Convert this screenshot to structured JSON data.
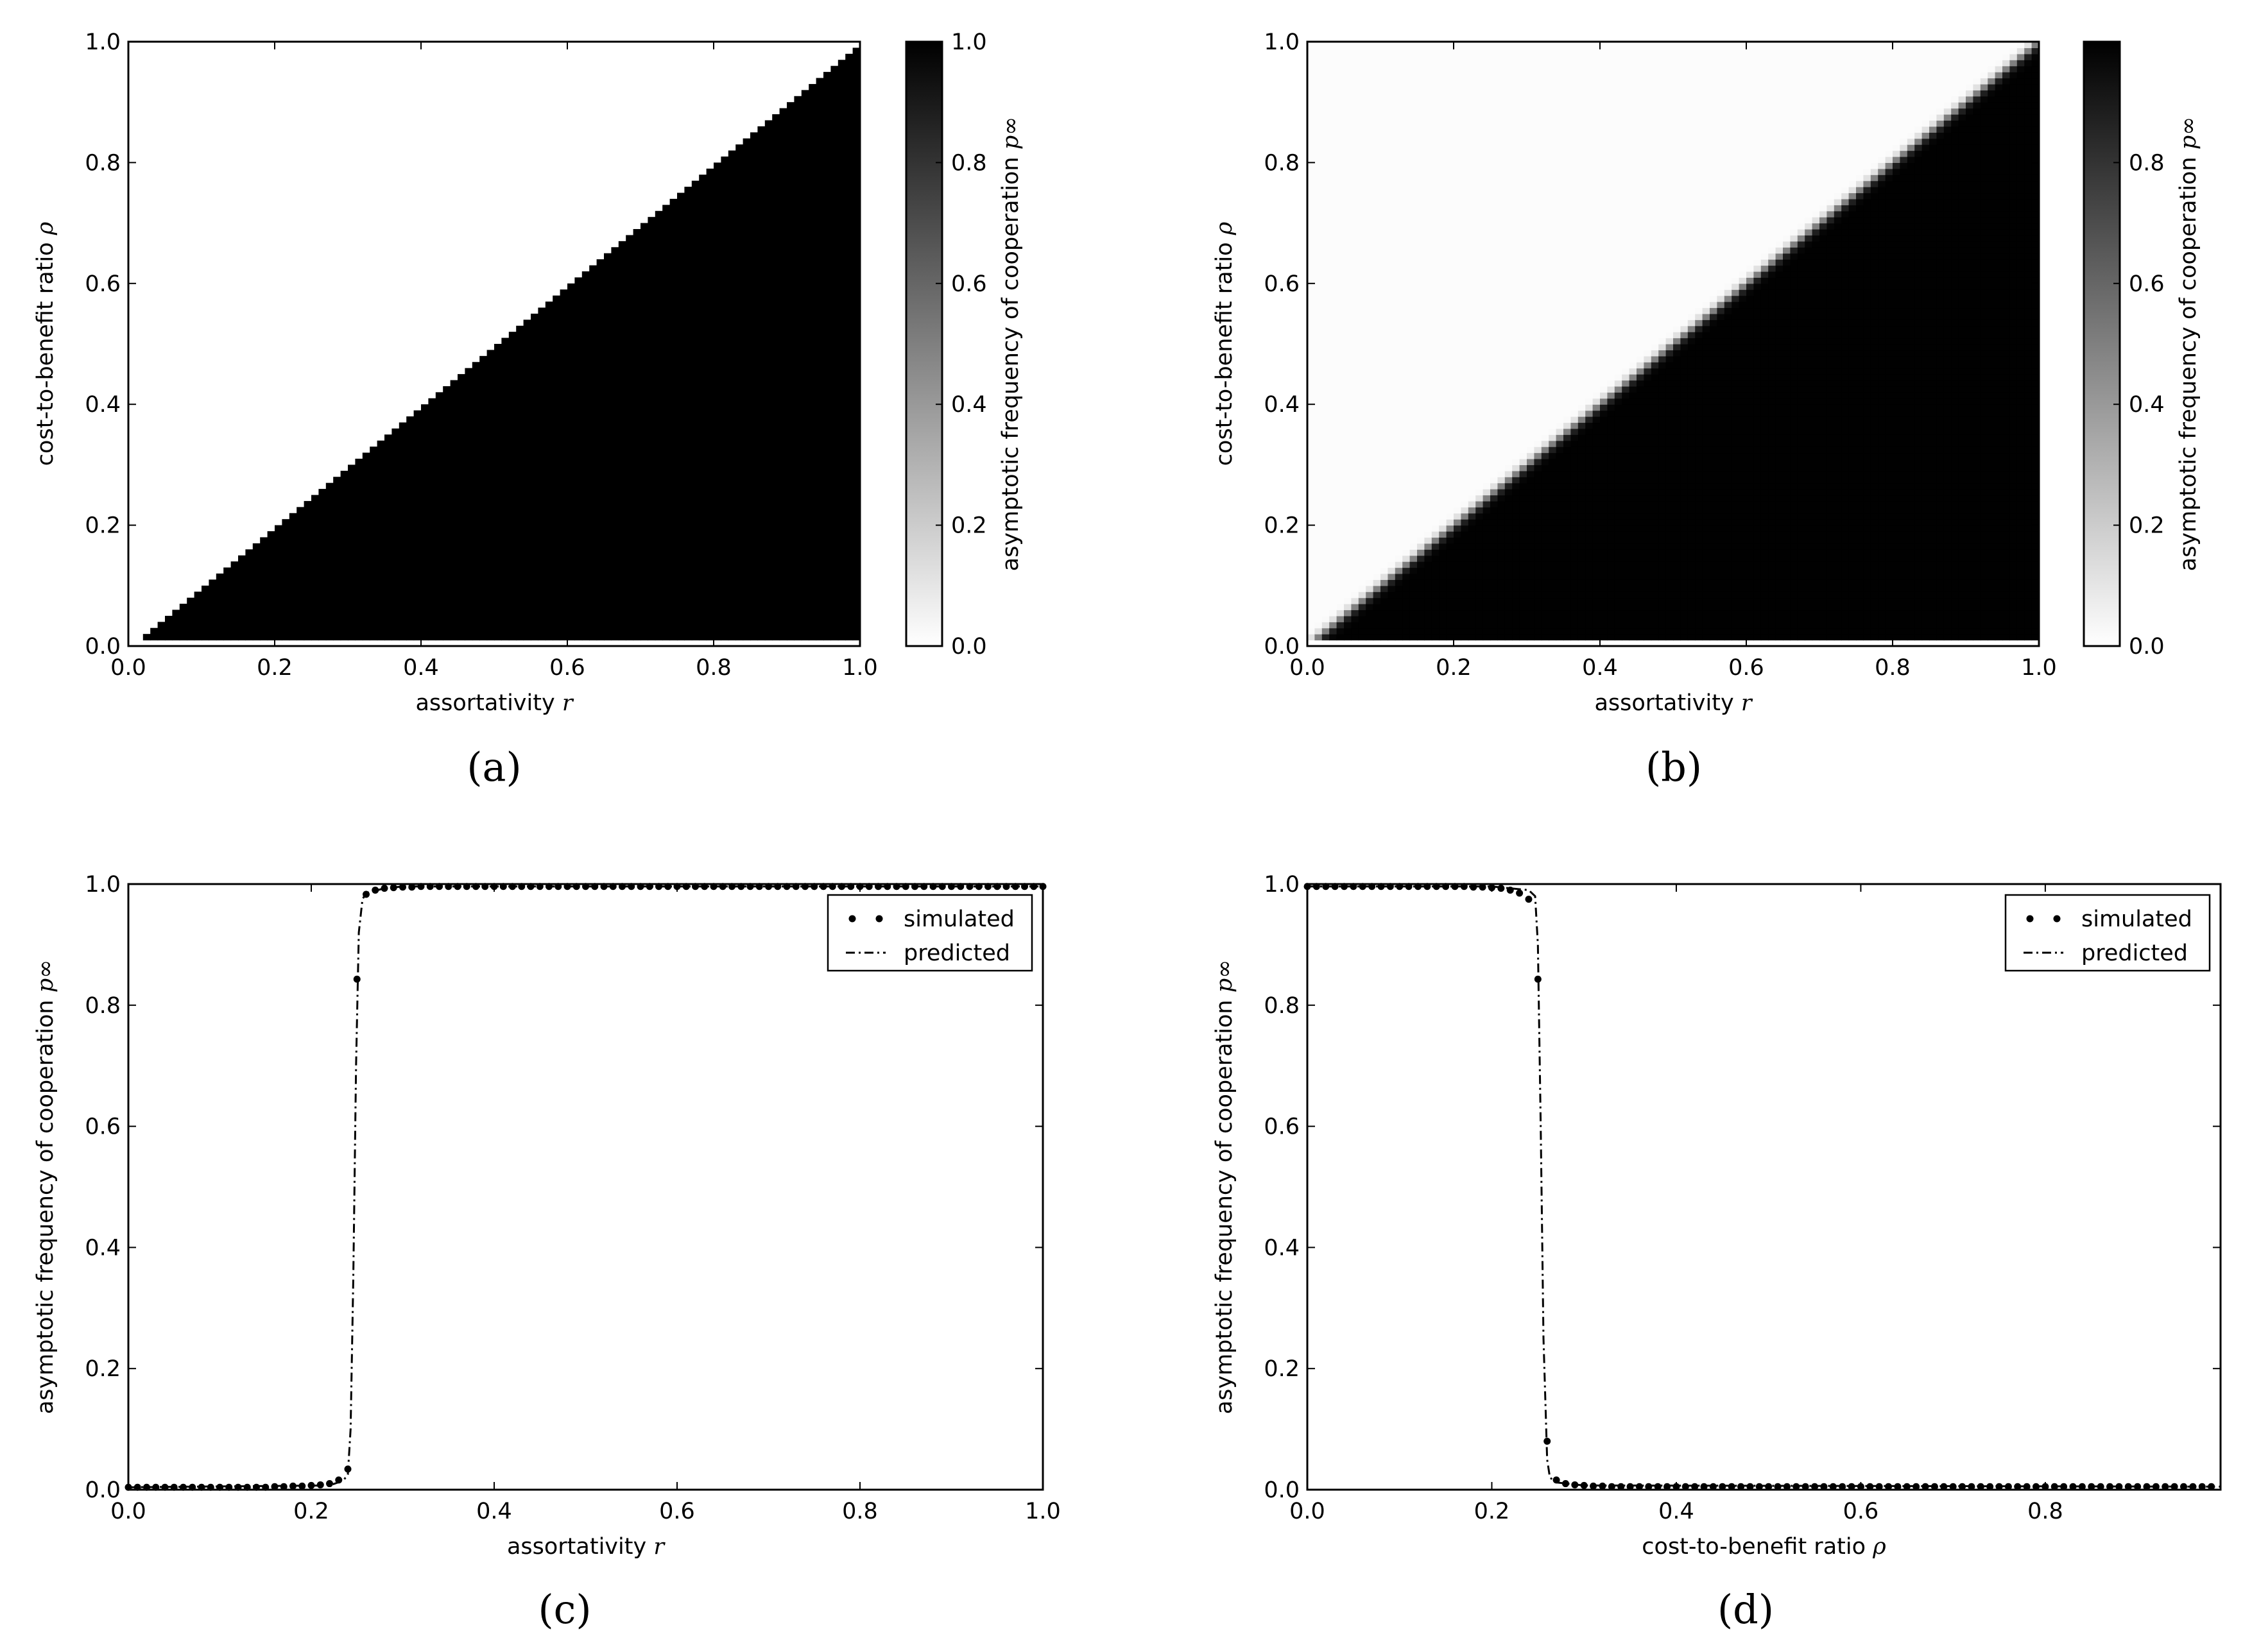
{
  "chart_data": [
    {
      "panel": "(a)",
      "type": "heatmap",
      "xlabel": "assortativity",
      "xlabel_symbol": "r",
      "ylabel": "cost-to-benefit ratio",
      "ylabel_symbol": "ρ",
      "xlim": [
        0.0,
        1.0
      ],
      "ylim": [
        0.0,
        1.0
      ],
      "xticks": [
        "0.0",
        "0.2",
        "0.4",
        "0.6",
        "0.8",
        "1.0"
      ],
      "yticks": [
        "0.0",
        "0.2",
        "0.4",
        "0.6",
        "0.8",
        "1.0"
      ],
      "colorbar": {
        "label": "asymptotic frequency of cooperation",
        "label_symbol": "p∞",
        "range": [
          0.0,
          1.0
        ],
        "ticks": [
          "0.0",
          "0.2",
          "0.4",
          "0.6",
          "0.8",
          "1.0"
        ],
        "cmap": "gray_r"
      },
      "grid_cells": 100,
      "boundary": "cooperation p∞ = 1 where ρ < r, p∞ = 0 where ρ > r",
      "transition_width": 0.0
    },
    {
      "panel": "(b)",
      "type": "heatmap",
      "xlabel": "assortativity",
      "xlabel_symbol": "r",
      "ylabel": "cost-to-benefit ratio",
      "ylabel_symbol": "ρ",
      "xlim": [
        0.0,
        1.0
      ],
      "ylim": [
        0.0,
        1.0
      ],
      "xticks": [
        "0.0",
        "0.2",
        "0.4",
        "0.6",
        "0.8",
        "1.0"
      ],
      "yticks": [
        "0.0",
        "0.2",
        "0.4",
        "0.6",
        "0.8",
        "1.0"
      ],
      "colorbar": {
        "label": "asymptotic frequency of cooperation",
        "label_symbol": "p∞",
        "range": [
          0.0,
          1.0
        ],
        "ticks": [
          "0.0",
          "0.2",
          "0.4",
          "0.6",
          "0.8"
        ],
        "cmap": "gray_r"
      },
      "grid_cells": 100,
      "boundary": "cooperation p∞ ≈ 1 where ρ < r, p∞ ≈ 0 where ρ > r, smooth transition near ρ = r",
      "transition_width": 0.02
    },
    {
      "panel": "(c)",
      "type": "scatter",
      "xlabel": "assortativity",
      "xlabel_symbol": "r",
      "ylabel": "asymptotic frequency of cooperation",
      "ylabel_symbol": "p∞",
      "xlim": [
        0.0,
        1.0
      ],
      "ylim": [
        0.0,
        1.0
      ],
      "xticks": [
        "0.0",
        "0.2",
        "0.4",
        "0.6",
        "0.8",
        "1.0"
      ],
      "yticks": [
        "0.0",
        "0.2",
        "0.4",
        "0.6",
        "0.8",
        "1.0"
      ],
      "legend": {
        "position": "top-right",
        "entries": [
          "simulated",
          "predicted"
        ]
      },
      "series": [
        {
          "name": "simulated",
          "style": "dots",
          "x": [
            0.0,
            0.01,
            0.02,
            0.03,
            0.04,
            0.05,
            0.06,
            0.07,
            0.08,
            0.09,
            0.1,
            0.11,
            0.12,
            0.13,
            0.14,
            0.15,
            0.16,
            0.17,
            0.18,
            0.19,
            0.2,
            0.21,
            0.22,
            0.23,
            0.24,
            0.25,
            0.26,
            0.27,
            0.28,
            0.29,
            0.3,
            0.31,
            0.32,
            0.33,
            0.34,
            0.35,
            0.36,
            0.37,
            0.38,
            0.39,
            0.4,
            0.41,
            0.42,
            0.43,
            0.44,
            0.45,
            0.46,
            0.47,
            0.48,
            0.49,
            0.5,
            0.51,
            0.52,
            0.53,
            0.54,
            0.55,
            0.56,
            0.57,
            0.58,
            0.59,
            0.6,
            0.61,
            0.62,
            0.63,
            0.64,
            0.65,
            0.66,
            0.67,
            0.68,
            0.69,
            0.7,
            0.71,
            0.72,
            0.73,
            0.74,
            0.75,
            0.76,
            0.77,
            0.78,
            0.79,
            0.8,
            0.81,
            0.82,
            0.83,
            0.84,
            0.85,
            0.86,
            0.87,
            0.88,
            0.89,
            0.9,
            0.91,
            0.92,
            0.93,
            0.94,
            0.95,
            0.96,
            0.97,
            0.98,
            0.99,
            1.0
          ],
          "y": [
            0.004,
            0.004,
            0.004,
            0.004,
            0.004,
            0.004,
            0.004,
            0.004,
            0.004,
            0.004,
            0.004,
            0.004,
            0.004,
            0.004,
            0.004,
            0.004,
            0.005,
            0.005,
            0.006,
            0.006,
            0.007,
            0.008,
            0.01,
            0.016,
            0.034,
            0.843,
            0.983,
            0.99,
            0.993,
            0.994,
            0.995,
            0.995,
            0.996,
            0.996,
            0.996,
            0.996,
            0.996,
            0.996,
            0.996,
            0.996,
            0.996,
            0.996,
            0.996,
            0.996,
            0.996,
            0.996,
            0.996,
            0.996,
            0.996,
            0.996,
            0.996,
            0.996,
            0.996,
            0.996,
            0.996,
            0.996,
            0.996,
            0.996,
            0.996,
            0.996,
            0.996,
            0.996,
            0.996,
            0.996,
            0.996,
            0.996,
            0.996,
            0.996,
            0.996,
            0.996,
            0.996,
            0.996,
            0.996,
            0.996,
            0.996,
            0.996,
            0.996,
            0.996,
            0.996,
            0.996,
            0.996,
            0.996,
            0.996,
            0.996,
            0.996,
            0.996,
            0.996,
            0.996,
            0.996,
            0.996,
            0.996,
            0.996,
            0.996,
            0.996,
            0.996,
            0.996,
            0.996,
            0.996,
            0.996,
            0.996,
            0.996
          ]
        },
        {
          "name": "predicted",
          "style": "dash-dot",
          "x": [
            0.0,
            0.22,
            0.235,
            0.24,
            0.243,
            0.246,
            0.249,
            0.252,
            0.256,
            0.26,
            0.28,
            0.3,
            1.0
          ],
          "y": [
            0.004,
            0.007,
            0.015,
            0.025,
            0.1,
            0.35,
            0.7,
            0.92,
            0.975,
            0.985,
            0.993,
            0.996,
            0.996
          ]
        }
      ]
    },
    {
      "panel": "(d)",
      "type": "scatter",
      "xlabel": "cost-to-benefit ratio",
      "xlabel_symbol": "ρ",
      "ylabel": "asymptotic frequency of cooperation",
      "ylabel_symbol": "p∞",
      "xlim": [
        0.0,
        0.99
      ],
      "ylim": [
        0.0,
        1.0
      ],
      "xticks": [
        "0.0",
        "0.2",
        "0.4",
        "0.6",
        "0.8"
      ],
      "yticks": [
        "0.0",
        "0.2",
        "0.4",
        "0.6",
        "0.8",
        "1.0"
      ],
      "legend": {
        "position": "top-right",
        "entries": [
          "simulated",
          "predicted"
        ]
      },
      "series": [
        {
          "name": "simulated",
          "style": "dots",
          "x": [
            0.0,
            0.01,
            0.02,
            0.03,
            0.04,
            0.05,
            0.06,
            0.07,
            0.08,
            0.09,
            0.1,
            0.11,
            0.12,
            0.13,
            0.14,
            0.15,
            0.16,
            0.17,
            0.18,
            0.19,
            0.2,
            0.21,
            0.22,
            0.23,
            0.24,
            0.25,
            0.26,
            0.27,
            0.28,
            0.29,
            0.3,
            0.31,
            0.32,
            0.33,
            0.34,
            0.35,
            0.36,
            0.37,
            0.38,
            0.39,
            0.4,
            0.41,
            0.42,
            0.43,
            0.44,
            0.45,
            0.46,
            0.47,
            0.48,
            0.49,
            0.5,
            0.51,
            0.52,
            0.53,
            0.54,
            0.55,
            0.56,
            0.57,
            0.58,
            0.59,
            0.6,
            0.61,
            0.62,
            0.63,
            0.64,
            0.65,
            0.66,
            0.67,
            0.68,
            0.69,
            0.7,
            0.71,
            0.72,
            0.73,
            0.74,
            0.75,
            0.76,
            0.77,
            0.78,
            0.79,
            0.8,
            0.81,
            0.82,
            0.83,
            0.84,
            0.85,
            0.86,
            0.87,
            0.88,
            0.89,
            0.9,
            0.91,
            0.92,
            0.93,
            0.94,
            0.95,
            0.96,
            0.97,
            0.98
          ],
          "y": [
            0.996,
            0.996,
            0.996,
            0.996,
            0.996,
            0.996,
            0.996,
            0.996,
            0.996,
            0.996,
            0.996,
            0.996,
            0.996,
            0.996,
            0.996,
            0.996,
            0.996,
            0.996,
            0.995,
            0.995,
            0.994,
            0.993,
            0.99,
            0.985,
            0.975,
            0.843,
            0.08,
            0.016,
            0.01,
            0.008,
            0.007,
            0.006,
            0.006,
            0.005,
            0.005,
            0.005,
            0.005,
            0.005,
            0.005,
            0.005,
            0.005,
            0.005,
            0.005,
            0.005,
            0.005,
            0.005,
            0.005,
            0.005,
            0.005,
            0.005,
            0.005,
            0.005,
            0.005,
            0.005,
            0.005,
            0.005,
            0.005,
            0.005,
            0.005,
            0.005,
            0.005,
            0.005,
            0.005,
            0.005,
            0.005,
            0.005,
            0.005,
            0.005,
            0.005,
            0.005,
            0.005,
            0.005,
            0.005,
            0.005,
            0.005,
            0.005,
            0.005,
            0.005,
            0.005,
            0.005,
            0.005,
            0.005,
            0.005,
            0.005,
            0.005,
            0.005,
            0.005,
            0.005,
            0.005,
            0.005,
            0.005,
            0.005,
            0.005,
            0.005,
            0.005,
            0.005,
            0.005,
            0.005,
            0.005
          ]
        },
        {
          "name": "predicted",
          "style": "dash-dot",
          "x": [
            0.0,
            0.2,
            0.24,
            0.247,
            0.25,
            0.253,
            0.256,
            0.26,
            0.263,
            0.27,
            0.3,
            0.99
          ],
          "y": [
            0.996,
            0.996,
            0.99,
            0.98,
            0.9,
            0.6,
            0.25,
            0.05,
            0.02,
            0.012,
            0.007,
            0.005
          ]
        }
      ]
    }
  ]
}
